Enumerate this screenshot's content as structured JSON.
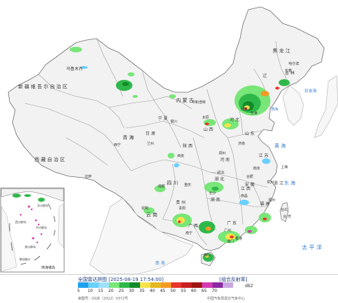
{
  "colors": {
    "land": "#f2f2f2",
    "sea": "#ffffff",
    "province_border": "#9a9a9a",
    "country_border": "#6a6a6a",
    "sea_label": "#3a7fd0",
    "echo_blue": "#6ad0ff",
    "echo_green": "#2fb84a",
    "echo_dark_green": "#138a2a",
    "echo_yellow": "#f6e34b",
    "echo_orange": "#f49a22",
    "echo_red": "#e8352a",
    "echo_magenta": "#d43ab0"
  },
  "labels": {
    "regions": [
      {
        "name": "乌鲁木齐"
      },
      {
        "name": "新 疆 维 吾 尔 自 治 区"
      },
      {
        "name": "西 藏 自 治 区"
      },
      {
        "name": "青 海"
      },
      {
        "name": "甘 肃"
      },
      {
        "name": "内 蒙 古"
      },
      {
        "name": "呼和浩特"
      },
      {
        "name": "黑 龙 江"
      },
      {
        "name": "哈尔滨"
      },
      {
        "name": "吉 林"
      },
      {
        "name": "长春"
      },
      {
        "name": "辽"
      },
      {
        "name": "北京"
      },
      {
        "name": "天津"
      },
      {
        "name": "宁 夏"
      },
      {
        "name": "西宁"
      },
      {
        "name": "兰州"
      },
      {
        "name": "银川"
      },
      {
        "name": "太原"
      },
      {
        "name": "山 西"
      },
      {
        "name": "河 北"
      },
      {
        "name": "山 东"
      },
      {
        "name": "济南"
      },
      {
        "name": "陕 西"
      },
      {
        "name": "西安"
      },
      {
        "name": "郑州"
      },
      {
        "name": "河 南"
      },
      {
        "name": "江 苏"
      },
      {
        "name": "南京"
      },
      {
        "name": "上海"
      },
      {
        "name": "合肥"
      },
      {
        "name": "安 徽"
      },
      {
        "name": "湖 北"
      },
      {
        "name": "武汉"
      },
      {
        "name": "四 川"
      },
      {
        "name": "成都"
      },
      {
        "name": "重庆"
      },
      {
        "name": "拉萨"
      },
      {
        "name": "浙 江"
      },
      {
        "name": "杭州"
      },
      {
        "name": "江 西"
      },
      {
        "name": "南昌"
      },
      {
        "name": "湖 南"
      },
      {
        "name": "长沙"
      },
      {
        "name": "贵 州"
      },
      {
        "name": "贵阳"
      },
      {
        "name": "云 南"
      },
      {
        "name": "昆明"
      },
      {
        "name": "福 建"
      },
      {
        "name": "福州"
      },
      {
        "name": "广 东"
      },
      {
        "name": "广州"
      },
      {
        "name": "广 西"
      },
      {
        "name": "南宁"
      },
      {
        "name": "台 湾"
      },
      {
        "name": "台北"
      },
      {
        "name": "海口"
      },
      {
        "name": "香港"
      },
      {
        "name": "澳门"
      }
    ],
    "seas": [
      {
        "name": "日本海"
      },
      {
        "name": "黄 海"
      },
      {
        "name": "东 海"
      },
      {
        "name": "太 平 洋"
      },
      {
        "name": "南 海"
      },
      {
        "name": "渤海"
      }
    ],
    "inset": {
      "title": "南海诸岛",
      "names": [
        "东沙群岛",
        "西沙群岛",
        "中沙群岛",
        "南沙群岛",
        "曾母暗沙"
      ]
    }
  },
  "legend": {
    "title": "全国雷达拼图 [2025-08-19 17:54:00]",
    "product": "[组合反射率]",
    "unit": "dBZ",
    "scale": [
      {
        "value": "5",
        "color": "#1ea0f0"
      },
      {
        "value": "10",
        "color": "#6ad0ff"
      },
      {
        "value": "15",
        "color": "#a0e0f8"
      },
      {
        "value": "20",
        "color": "#78e678"
      },
      {
        "value": "25",
        "color": "#2fb84a"
      },
      {
        "value": "30",
        "color": "#138a2a"
      },
      {
        "value": "35",
        "color": "#f6e34b"
      },
      {
        "value": "40",
        "color": "#e6b820"
      },
      {
        "value": "45",
        "color": "#f49a22"
      },
      {
        "value": "50",
        "color": "#e8352a"
      },
      {
        "value": "55",
        "color": "#c82020"
      },
      {
        "value": "60",
        "color": "#a01515"
      },
      {
        "value": "65",
        "color": "#d43ab0"
      },
      {
        "value": "70",
        "color": "#8a2aa0"
      },
      {
        "value": "",
        "color": "#c8a8e0"
      }
    ],
    "footer_left": "审图号：GS京（2022）0372号",
    "footer_right": "中国气象局雷达气象中心"
  }
}
